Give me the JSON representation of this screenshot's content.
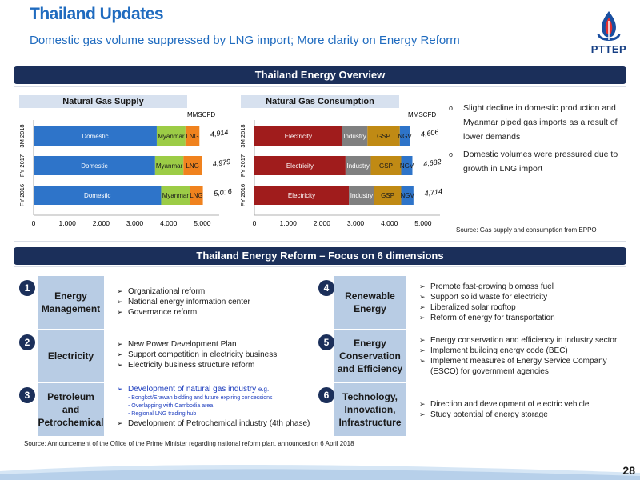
{
  "header": {
    "title": "Thailand Updates",
    "subtitle": "Domestic gas volume suppressed by LNG import; More clarity on Energy Reform",
    "logo_text": "PTTEP"
  },
  "overview": {
    "heading": "Thailand Energy Overview",
    "bullets": [
      "Slight decline in domestic production and Myanmar piped gas imports as a result of lower demands",
      "Domestic volumes were pressured due to growth in LNG import"
    ],
    "source": "Source: Gas supply and consumption from EPPO"
  },
  "chart_data": [
    {
      "type": "bar",
      "orientation": "horizontal",
      "stacked": true,
      "title": "Natural Gas Supply",
      "unit": "MMSCFD",
      "categories": [
        "3M 2018",
        "FY 2017",
        "FY 2016"
      ],
      "series": [
        {
          "name": "Domestic",
          "values": [
            3650,
            3600,
            3780
          ],
          "color": "#2e74c9"
        },
        {
          "name": "Myanmar",
          "values": [
            850,
            840,
            850
          ],
          "color": "#9ccc46"
        },
        {
          "name": "LNG",
          "values": [
            414,
            539,
            386
          ],
          "color": "#f0821e"
        }
      ],
      "totals": [
        "4,914",
        "4,979",
        "5,016"
      ],
      "xticks": [
        "0",
        "1,000",
        "2,000",
        "3,000",
        "4,000",
        "5,000"
      ],
      "xlim": [
        0,
        5500
      ]
    },
    {
      "type": "bar",
      "orientation": "horizontal",
      "stacked": true,
      "title": "Natural Gas Consumption",
      "unit": "MMSCFD",
      "categories": [
        "3M 2018",
        "FY 2017",
        "FY 2016"
      ],
      "series": [
        {
          "name": "Electricity",
          "values": [
            2600,
            2700,
            2800
          ],
          "color": "#a01c1c"
        },
        {
          "name": "Industry",
          "values": [
            750,
            750,
            750
          ],
          "color": "#808080"
        },
        {
          "name": "GSP",
          "values": [
            960,
            900,
            800
          ],
          "color": "#c08a14"
        },
        {
          "name": "NGV",
          "values": [
            296,
            332,
            364
          ],
          "color": "#2e74c9"
        }
      ],
      "totals": [
        "4,606",
        "4,682",
        "4,714"
      ],
      "xticks": [
        "0",
        "1,000",
        "2,000",
        "3,000",
        "4,000",
        "5,000"
      ],
      "xlim": [
        0,
        5500
      ]
    }
  ],
  "reform": {
    "heading": "Thailand Energy Reform – Focus on 6 dimensions",
    "dimensions": [
      {
        "num": "1",
        "label": "Energy Management",
        "items": [
          "Organizational reform",
          "National energy information center",
          "Governance reform"
        ]
      },
      {
        "num": "2",
        "label": "Electricity",
        "items": [
          "New Power Development Plan",
          "Support competition in electricity business",
          "Electricity business structure reform"
        ]
      },
      {
        "num": "3",
        "label": "Petroleum and Petrochemical",
        "items": [
          "Development of natural gas industry",
          "Development of Petrochemical industry (4th phase)"
        ],
        "eg": "e.g.",
        "subitems": [
          "- Bongkot/Erawan bidding and future expiring concessions",
          "- Overlapping with Cambodia area",
          "- Regional LNG trading hub"
        ]
      },
      {
        "num": "4",
        "label": "Renewable Energy",
        "items": [
          "Promote fast-growing biomass fuel",
          "Support solid waste for electricity",
          "Liberalized solar rooftop",
          "Reform of energy for transportation"
        ]
      },
      {
        "num": "5",
        "label": "Energy Conservation and Efficiency",
        "items": [
          "Energy conservation and efficiency in industry sector",
          "Implement building energy code (BEC)",
          "Implement measures of Energy Service Company (ESCO) for government agencies"
        ]
      },
      {
        "num": "6",
        "label": "Technology, Innovation, Infrastructure",
        "items": [
          "Direction and development of electric vehicle",
          "Study potential of energy storage"
        ]
      }
    ],
    "source": "Source: Announcement of the Office of the Prime Minister regarding national reform plan, announced on 6 April 2018"
  },
  "page_number": "28"
}
